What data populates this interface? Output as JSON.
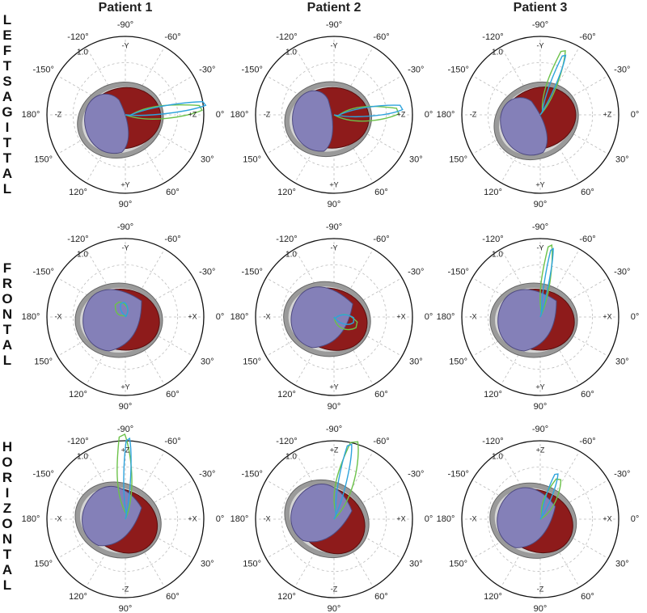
{
  "columns": [
    "Patient 1",
    "Patient 2",
    "Patient 3"
  ],
  "rows": [
    {
      "label": "LEFT SAGITTAL",
      "axes": {
        "top": "-Y",
        "bottom": "+Y",
        "left": "-Z",
        "right": "+Z"
      }
    },
    {
      "label": "FRONTAL",
      "axes": {
        "top": "-Y",
        "bottom": "+Y",
        "left": "-X",
        "right": "+X"
      }
    },
    {
      "label": "HORIZONTAL",
      "axes": {
        "top": "+Z",
        "bottom": "-Z",
        "left": "-X",
        "right": "+X"
      }
    }
  ],
  "angle_ticks": [
    {
      "value": -120,
      "label": "-120°"
    },
    {
      "value": -90,
      "label": "-90°"
    },
    {
      "value": -60,
      "label": "-60°"
    },
    {
      "value": -150,
      "label": "-150°"
    },
    {
      "value": -30,
      "label": "-30°"
    },
    {
      "value": 180,
      "label": "180°"
    },
    {
      "value": 0,
      "label": "0°"
    },
    {
      "value": 150,
      "label": "150°"
    },
    {
      "value": 30,
      "label": "30°"
    },
    {
      "value": 120,
      "label": "120°"
    },
    {
      "value": 90,
      "label": "90°"
    },
    {
      "value": 60,
      "label": "60°"
    }
  ],
  "radius_label": "1.0"
}
